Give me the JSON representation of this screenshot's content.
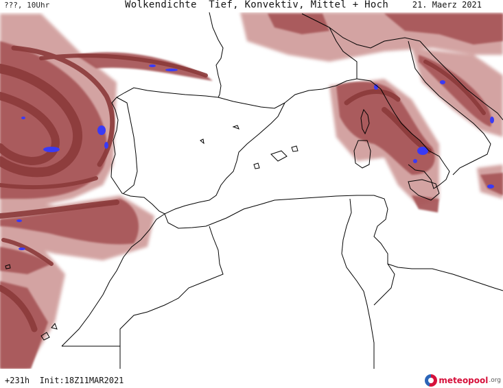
{
  "header": {
    "left_label": "???, 10Uhr",
    "title": "Wolkendichte  Tief, Konvektiv, Mittel + Hoch",
    "date": "21. Maerz 2021"
  },
  "footer": {
    "forecast_info": "+231h  Init:18Z11MAR2021",
    "logo_text": "meteopool",
    "logo_suffix": ".org"
  },
  "map": {
    "colors": {
      "cloud_dense": "#8b3a3a",
      "cloud_mid": "#a8595a",
      "cloud_light": "#cf9a98",
      "convective": "#3a3af5",
      "coastline": "#000000",
      "background": "#ffffff"
    }
  }
}
